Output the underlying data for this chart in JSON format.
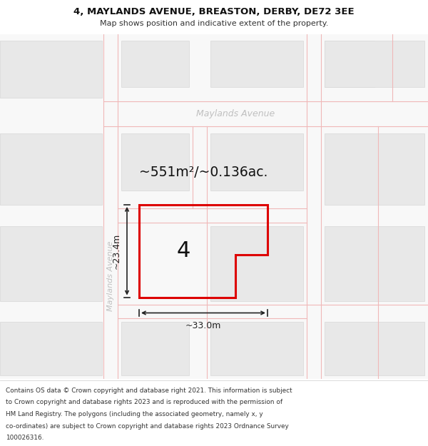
{
  "title": "4, MAYLANDS AVENUE, BREASTON, DERBY, DE72 3EE",
  "subtitle": "Map shows position and indicative extent of the property.",
  "footer_lines": [
    "Contains OS data © Crown copyright and database right 2021. This information is subject",
    "to Crown copyright and database rights 2023 and is reproduced with the permission of",
    "HM Land Registry. The polygons (including the associated geometry, namely x, y",
    "co-ordinates) are subject to Crown copyright and database rights 2023 Ordnance Survey",
    "100026316."
  ],
  "area_label": "~551m²/~0.136ac.",
  "number_label": "4",
  "dim_width_label": "~33.0m",
  "dim_height_label": "~23.4m",
  "street_h": "Maylands Avenue",
  "street_v": "Maylands Avenue",
  "bg_color": "#f8f8f8",
  "road_outline_color": "#f0b8b8",
  "building_fill": "#e8e8e8",
  "building_edge": "#d8d8d8",
  "plot_color": "#dd0000",
  "plot_fill": "#ffffff",
  "dim_color": "#222222",
  "street_color": "#c0c0c0",
  "text_dark": "#111111"
}
